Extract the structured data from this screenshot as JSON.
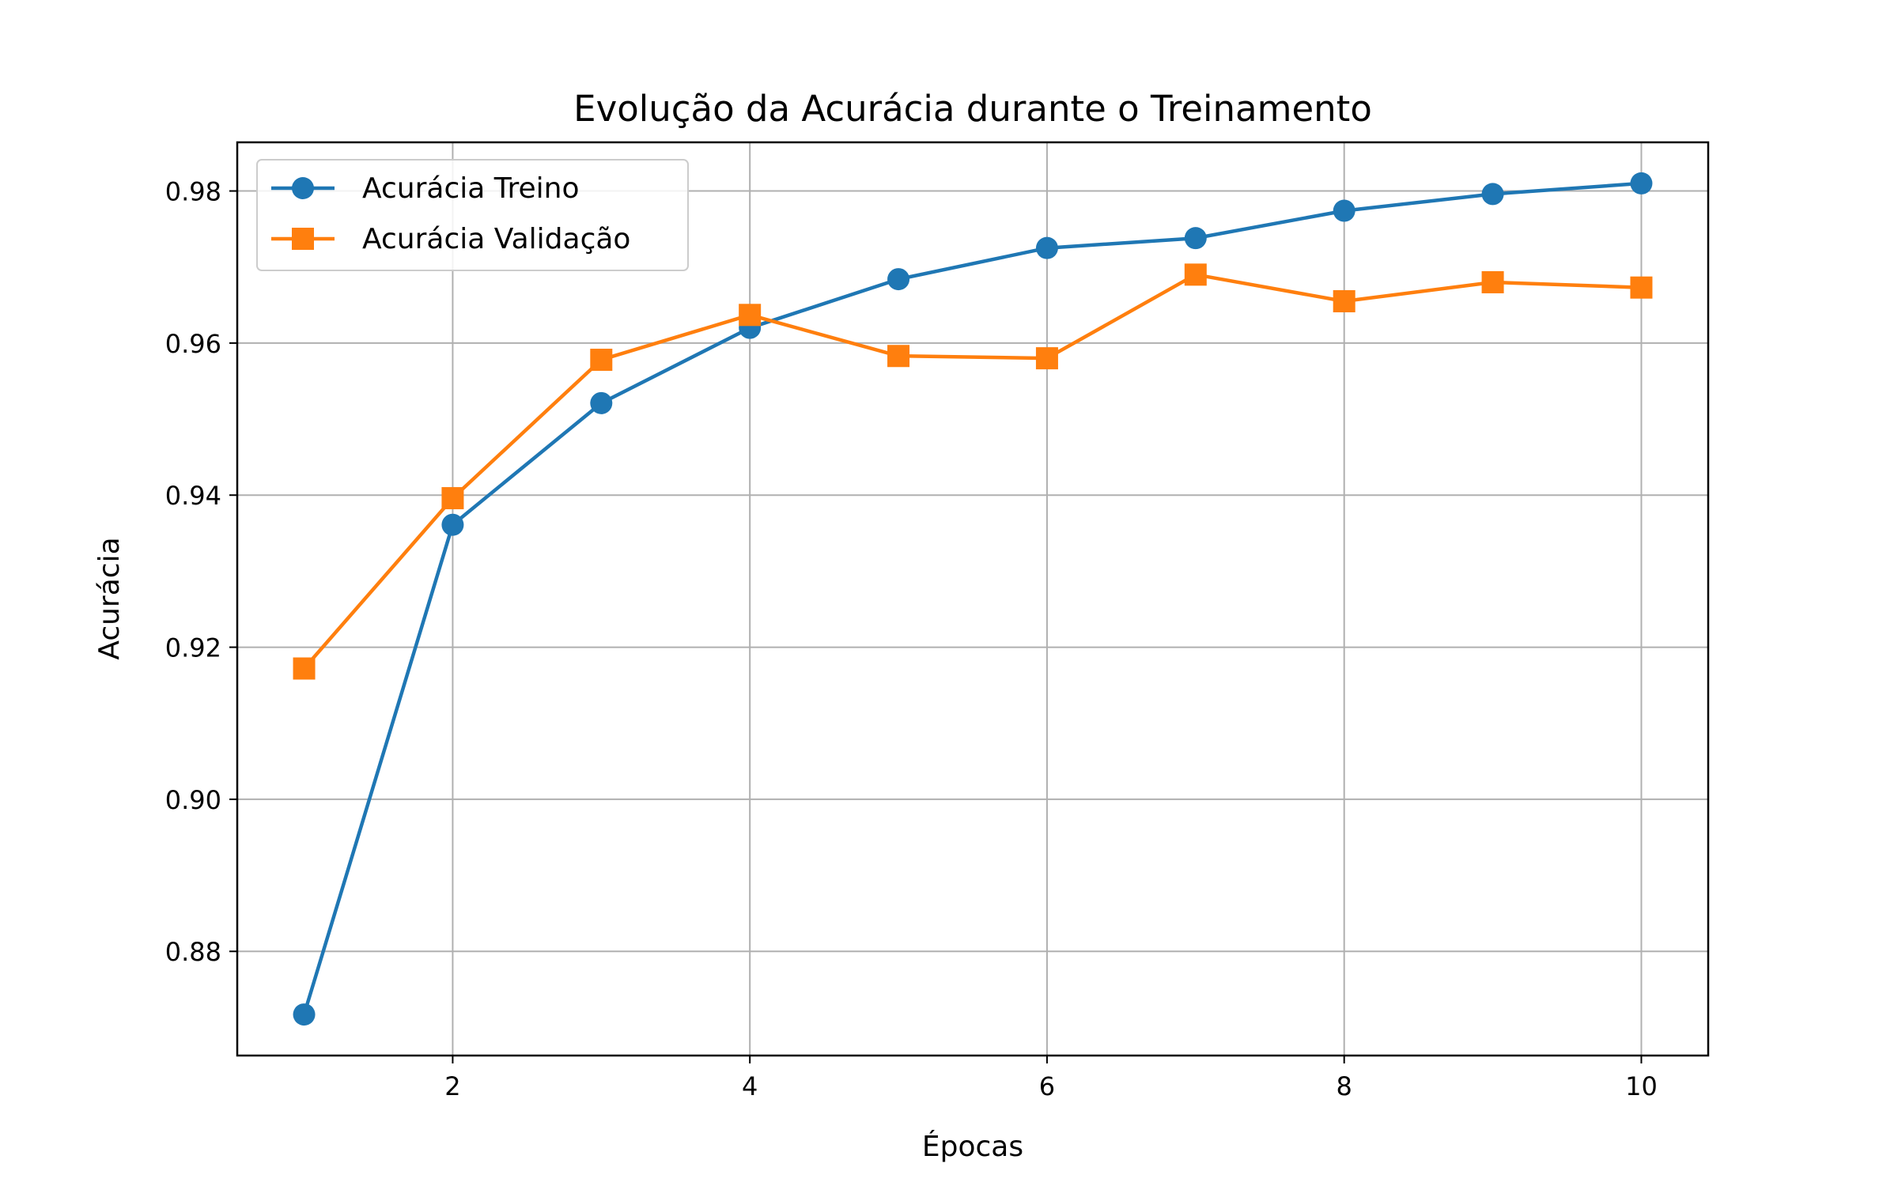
{
  "chart_data": {
    "type": "line",
    "title": "Evolução da Acurácia durante o Treinamento",
    "xlabel": "Épocas",
    "ylabel": "Acurácia",
    "x": [
      1,
      2,
      3,
      4,
      5,
      6,
      7,
      8,
      9,
      10
    ],
    "xlim": [
      0.55,
      10.45
    ],
    "ylim": [
      0.8663,
      0.9864
    ],
    "xticks": [
      2,
      4,
      6,
      8,
      10
    ],
    "xtick_labels": [
      "2",
      "4",
      "6",
      "8",
      "10"
    ],
    "yticks": [
      0.88,
      0.9,
      0.92,
      0.94,
      0.96,
      0.98
    ],
    "ytick_labels": [
      "0.88",
      "0.90",
      "0.92",
      "0.94",
      "0.96",
      "0.98"
    ],
    "grid": true,
    "legend_position": "top-left",
    "series": [
      {
        "name": "Acurácia Treino",
        "marker": "circle",
        "color": "#1f77b4",
        "values": [
          0.8717,
          0.9361,
          0.9521,
          0.962,
          0.9684,
          0.9725,
          0.9738,
          0.9774,
          0.9796,
          0.981
        ]
      },
      {
        "name": "Acurácia Validação",
        "marker": "square",
        "color": "#ff7f0e",
        "values": [
          0.9172,
          0.9396,
          0.9578,
          0.9637,
          0.9583,
          0.958,
          0.969,
          0.9655,
          0.968,
          0.9673
        ]
      }
    ]
  }
}
